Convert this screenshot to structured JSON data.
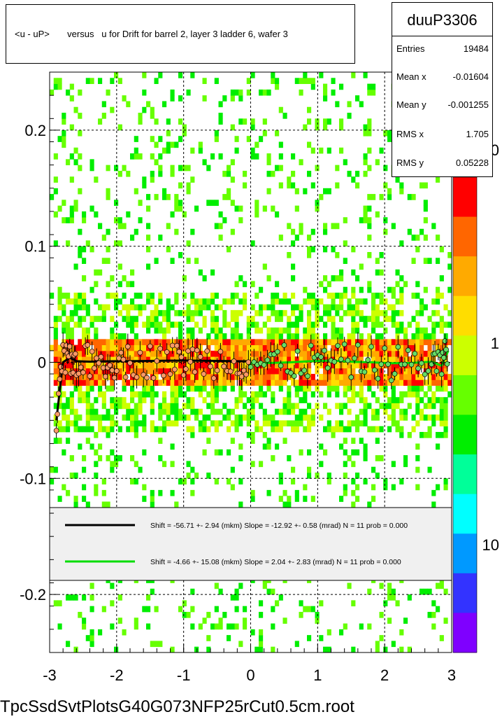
{
  "title": "<u - uP>       versus   u for Drift for barrel 2, layer 3 ladder 6, wafer 3",
  "stats": {
    "name": "duuP3306",
    "rows": [
      {
        "label": "Entries",
        "value": "19484"
      },
      {
        "label": "Mean x",
        "value": "-0.01604"
      },
      {
        "label": "Mean y",
        "value": "-0.001255"
      },
      {
        "label": "RMS x",
        "value": "1.705"
      },
      {
        "label": "RMS y",
        "value": "0.05228"
      }
    ]
  },
  "legend": {
    "entries": [
      {
        "text": "Shift =   -56.71 +- 2.94 (mkm) Slope =   -12.92 +- 0.58 (mrad)  N = 11 prob = 0.000",
        "color": "#000000"
      },
      {
        "text": "Shift =    -4.66 +- 15.08 (mkm) Slope =     2.04 +- 2.83 (mrad)  N = 11 prob = 0.000",
        "color": "#00dd00"
      }
    ]
  },
  "footer": "TpcSsdSvtPlotsG40G073NFP25rCut0.5cm.root",
  "palette_labels": [
    "0",
    "1",
    "10"
  ],
  "chart_data": {
    "type": "heatmap",
    "title": "<u - uP>       versus   u for Drift for barrel 2, layer 3 ladder 6, wafer 3",
    "xlim": [
      -3,
      3
    ],
    "ylim": [
      -0.25,
      0.25
    ],
    "x_ticks": [
      -3,
      -2,
      -1,
      0,
      1,
      2,
      3
    ],
    "y_ticks": [
      -0.2,
      -0.1,
      0,
      0.1,
      0.2
    ],
    "x_tick_labels": [
      "-3",
      "-2",
      "-1",
      "0",
      "1",
      "2",
      "3"
    ],
    "y_tick_labels": [
      "-0.2",
      "-0.1",
      "0",
      "0.1",
      "0.2"
    ],
    "grid": true,
    "colorscale": [
      "#7f00ff",
      "#3333ff",
      "#0099ff",
      "#00ffff",
      "#00ff99",
      "#00ee00",
      "#66ff00",
      "#ccff00",
      "#ffdd00",
      "#ffaa00",
      "#ff6600",
      "#ff0000"
    ],
    "band": {
      "center": 0.0,
      "core_halfwidth": 0.02,
      "halo_halfwidth": 0.06
    },
    "series": [
      {
        "name": "",
        "color": "#000000",
        "x": [
          -2.9,
          -2.8,
          -2.7,
          -2.6,
          -2.4,
          -2.2,
          -2.0,
          -1.8,
          -1.5,
          -1.2,
          -1.0,
          -0.8,
          -0.5,
          -0.2,
          0.0
        ],
        "y": [
          -0.05,
          0.0,
          0.004,
          0.001,
          0.0005,
          0.0008,
          0.001,
          0.001,
          0.0012,
          0.0014,
          0.0015,
          0.0014,
          0.0012,
          0.001,
          0.0008
        ]
      },
      {
        "name": "",
        "color": "#00dd00",
        "x": [
          0.0,
          0.3,
          0.6,
          0.9,
          1.2,
          1.5,
          1.8,
          2.1,
          2.4,
          2.7,
          2.85,
          2.95
        ],
        "y": [
          -0.001,
          -0.0005,
          0.0,
          0.001,
          0.0015,
          0.0005,
          0.0,
          -0.0008,
          -0.0005,
          0.0005,
          -0.003,
          0.01
        ]
      }
    ]
  }
}
